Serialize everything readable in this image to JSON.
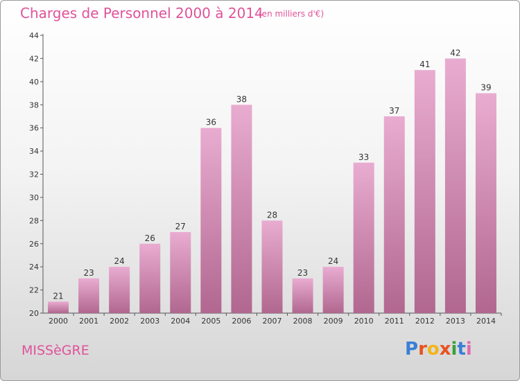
{
  "page": {
    "title": "Charges de Personnel 2000 à 2014",
    "unit": "(en milliers d'€)",
    "commune": "MISSèGRE",
    "logo": [
      "P",
      "r",
      "o",
      "x",
      "i",
      "t",
      "i"
    ],
    "logo_colors": [
      "#3a7fd5",
      "#e8531f",
      "#f2b51a",
      "#e8531f",
      "#3a9f3a",
      "#3a7fd5",
      "#e06ab0"
    ]
  },
  "chart_data": {
    "type": "bar",
    "categories": [
      "2000",
      "2001",
      "2002",
      "2003",
      "2004",
      "2005",
      "2006",
      "2007",
      "2008",
      "2009",
      "2010",
      "2011",
      "2012",
      "2013",
      "2014"
    ],
    "values": [
      21,
      23,
      24,
      26,
      27,
      36,
      38,
      28,
      23,
      24,
      33,
      37,
      41,
      42,
      39
    ],
    "ylim": [
      20,
      44
    ],
    "yticks": [
      20,
      22,
      24,
      26,
      28,
      30,
      32,
      34,
      36,
      38,
      40,
      42,
      44
    ],
    "grid": false,
    "bar_color_top": "#e9acd1",
    "bar_color_bottom": "#b1678f"
  }
}
